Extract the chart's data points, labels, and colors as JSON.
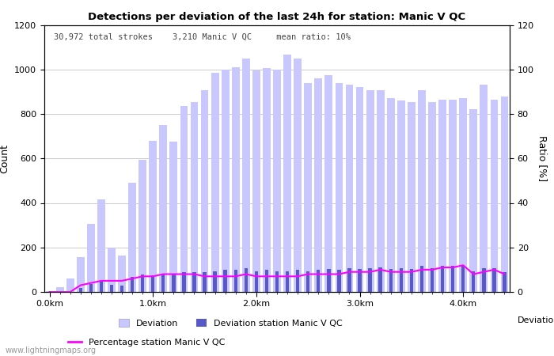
{
  "title": "Detections per deviation of the last 24h for station: Manic V QC",
  "subtitle": "30,972 total strokes    3,210 Manic V QC     mean ratio: 10%",
  "xlabel": "Deviations",
  "ylabel_left": "Count",
  "ylabel_right": "Ratio [%]",
  "watermark": "www.lightningmaps.org",
  "ylim_left": [
    0,
    1200
  ],
  "ylim_right": [
    0,
    120
  ],
  "bar_color_total": "#c8c8ff",
  "bar_color_station": "#5858c8",
  "line_color": "#ff00ff",
  "total_counts": [
    5,
    20,
    60,
    155,
    305,
    415,
    200,
    165,
    490,
    595,
    680,
    750,
    675,
    835,
    855,
    905,
    985,
    1000,
    1010,
    1050,
    995,
    1005,
    1000,
    1065,
    1050,
    940,
    960,
    975,
    940,
    930,
    920,
    905,
    905,
    870,
    860,
    855,
    905,
    855,
    865,
    865,
    870,
    820,
    930,
    865,
    880
  ],
  "station_counts": [
    0,
    0,
    0,
    18,
    35,
    45,
    32,
    28,
    68,
    78,
    75,
    83,
    83,
    88,
    88,
    88,
    93,
    98,
    98,
    108,
    93,
    98,
    93,
    93,
    98,
    93,
    98,
    103,
    98,
    108,
    103,
    108,
    112,
    103,
    108,
    103,
    118,
    108,
    118,
    118,
    118,
    93,
    108,
    108,
    88
  ],
  "ratio": [
    0,
    0,
    0,
    3,
    4,
    5,
    5,
    5,
    6,
    7,
    7,
    8,
    8,
    8,
    8,
    7,
    7,
    7,
    7,
    8,
    7,
    7,
    7,
    7,
    7,
    8,
    8,
    8,
    8,
    9,
    9,
    9,
    10,
    9,
    9,
    9,
    10,
    10,
    11,
    11,
    12,
    8,
    9,
    10,
    8
  ],
  "n_bars": 45,
  "km_per_bar": 0.1,
  "xtick_km": [
    0.0,
    1.0,
    2.0,
    3.0,
    4.0
  ],
  "ytick_left": [
    0,
    200,
    400,
    600,
    800,
    1000,
    1200
  ],
  "ytick_right": [
    0,
    20,
    40,
    60,
    80,
    100,
    120
  ]
}
